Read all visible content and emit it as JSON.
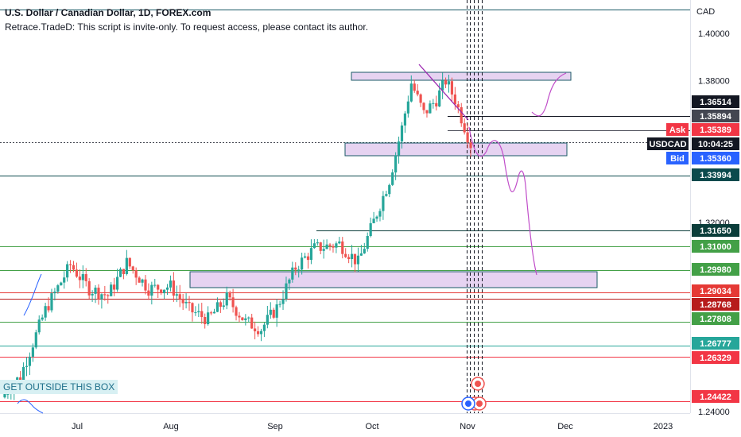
{
  "header": {
    "title": "U.S. Dollar / Canadian Dollar, 1D, FOREX.com",
    "subtitle": "Retrace.TradeD: This script is invite-only. To request access, please contact its author."
  },
  "note": "GET OUTSIDE THIS BOX",
  "chart_data": {
    "type": "candlestick",
    "symbol": "USDCAD",
    "currency": "CAD",
    "y_ticks": [
      "1.40000",
      "1.38000",
      "1.32000",
      "1.24000"
    ],
    "x_ticks": [
      "Jul",
      "Aug",
      "Sep",
      "Oct",
      "Nov",
      "Dec",
      "2023"
    ],
    "price_tags": [
      {
        "label": "",
        "value": "1.36514",
        "color": "#131722"
      },
      {
        "label": "",
        "value": "1.35894",
        "color": "#434651"
      },
      {
        "label": "Ask",
        "value": "1.35389",
        "color": "#f23645"
      },
      {
        "label": "USDCAD",
        "value": "10:04:25",
        "color": "#131722"
      },
      {
        "label": "Bid",
        "value": "1.35360",
        "color": "#2962ff"
      },
      {
        "label": "",
        "value": "1.33994",
        "color": "#0b4a4d"
      },
      {
        "label": "",
        "value": "1.31650",
        "color": "#0b3d3a"
      },
      {
        "label": "",
        "value": "1.31000",
        "color": "#43a047"
      },
      {
        "label": "",
        "value": "1.29980",
        "color": "#43a047"
      },
      {
        "label": "",
        "value": "1.29034",
        "color": "#e53935"
      },
      {
        "label": "",
        "value": "1.28768",
        "color": "#b71c1c"
      },
      {
        "label": "",
        "value": "1.27808",
        "color": "#43a047"
      },
      {
        "label": "",
        "value": "1.26777",
        "color": "#26a69a"
      },
      {
        "label": "",
        "value": "1.26329",
        "color": "#f23645"
      },
      {
        "label": "",
        "value": "1.24422",
        "color": "#f23645"
      }
    ],
    "colors": {
      "up": "#26a69a",
      "down": "#ef5350",
      "zone": "#e6d3f1",
      "zone_border": "#1a5a66",
      "projection": "#c04dc9"
    }
  }
}
